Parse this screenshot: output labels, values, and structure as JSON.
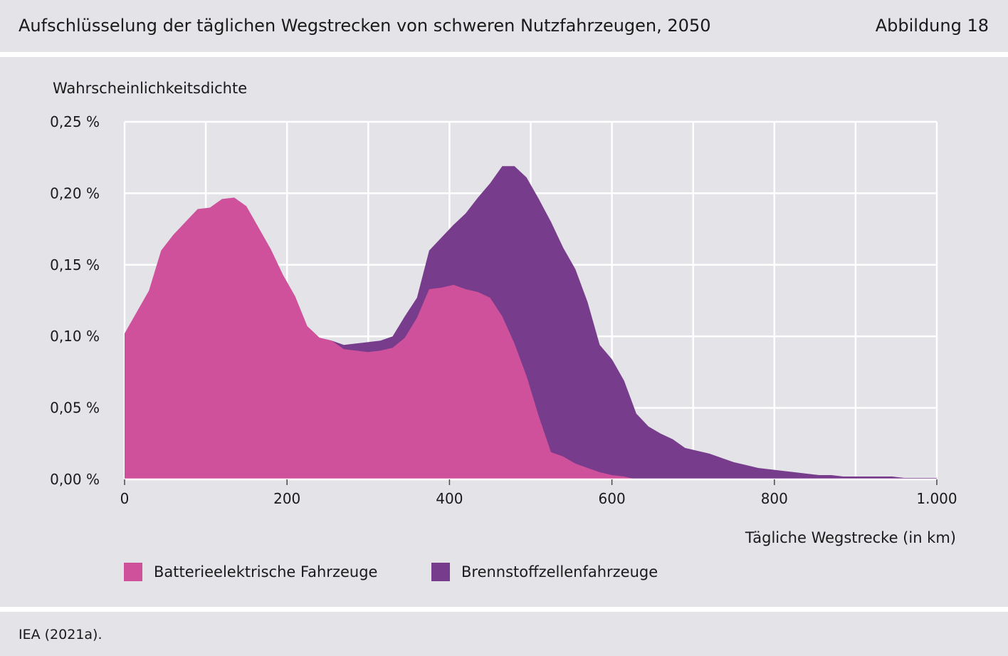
{
  "header": {
    "title": "Aufschlüsselung der täglichen Wegstrecken von schweren Nutzfahrzeugen, 2050",
    "figure_label": "Abbildung 18"
  },
  "footer": {
    "source": "IEA (2021a)."
  },
  "colors": {
    "bev": "#cf519b",
    "fcev": "#773c8b",
    "panel": "#e3e3e8",
    "grid": "#ffffff"
  },
  "chart_data": {
    "type": "area",
    "stacked": false,
    "ylabel": "Wahrscheinlichkeitsdichte",
    "xlabel": "Tägliche Wegstrecke (in km)",
    "xlim": [
      0,
      1000
    ],
    "ylim": [
      0,
      0.25
    ],
    "x_ticks": [
      0,
      200,
      400,
      600,
      800,
      1000
    ],
    "x_tick_labels": [
      "0",
      "200",
      "400",
      "600",
      "800",
      "1.000"
    ],
    "y_ticks": [
      0,
      0.05,
      0.1,
      0.15,
      0.2,
      0.25
    ],
    "y_tick_labels": [
      "0,00 %",
      "0,05 %",
      "0,10 %",
      "0,15 %",
      "0,20 %",
      "0,25 %"
    ],
    "grid": true,
    "legend_position": "bottom",
    "series": [
      {
        "name": "Batterieelektrische Fahrzeuge",
        "color": "#cf519b",
        "x": [
          0,
          30,
          45,
          60,
          75,
          90,
          105,
          120,
          135,
          150,
          165,
          180,
          195,
          210,
          225,
          240,
          255,
          270,
          285,
          300,
          315,
          330,
          345,
          360,
          375,
          390,
          405,
          420,
          435,
          450,
          465,
          480,
          495,
          510,
          525,
          540,
          555,
          570,
          585,
          600,
          615,
          630
        ],
        "y": [
          0.102,
          0.132,
          0.16,
          0.171,
          0.18,
          0.189,
          0.19,
          0.196,
          0.197,
          0.191,
          0.176,
          0.161,
          0.143,
          0.128,
          0.107,
          0.099,
          0.097,
          0.091,
          0.09,
          0.089,
          0.09,
          0.092,
          0.099,
          0.113,
          0.133,
          0.134,
          0.136,
          0.133,
          0.131,
          0.127,
          0.114,
          0.095,
          0.072,
          0.044,
          0.019,
          0.016,
          0.011,
          0.008,
          0.005,
          0.003,
          0.002,
          0.0
        ]
      },
      {
        "name": "Brennstoffzellenfahrzeuge",
        "color": "#773c8b",
        "x": [
          225,
          240,
          255,
          270,
          285,
          300,
          315,
          330,
          345,
          360,
          375,
          390,
          405,
          420,
          435,
          450,
          465,
          480,
          495,
          510,
          525,
          540,
          555,
          570,
          585,
          600,
          615,
          630,
          645,
          660,
          675,
          690,
          705,
          720,
          735,
          750,
          765,
          780,
          795,
          810,
          825,
          840,
          855,
          870,
          885,
          900,
          915,
          930,
          945,
          960,
          975,
          990,
          1000
        ],
        "y": [
          0.107,
          0.099,
          0.097,
          0.094,
          0.095,
          0.096,
          0.097,
          0.1,
          0.114,
          0.127,
          0.16,
          0.169,
          0.178,
          0.186,
          0.197,
          0.207,
          0.219,
          0.219,
          0.211,
          0.196,
          0.18,
          0.162,
          0.147,
          0.124,
          0.094,
          0.084,
          0.069,
          0.046,
          0.037,
          0.032,
          0.028,
          0.022,
          0.02,
          0.018,
          0.015,
          0.012,
          0.01,
          0.008,
          0.007,
          0.006,
          0.005,
          0.004,
          0.003,
          0.003,
          0.002,
          0.002,
          0.002,
          0.002,
          0.002,
          0.001,
          0.001,
          0.001,
          0.001
        ]
      }
    ]
  }
}
